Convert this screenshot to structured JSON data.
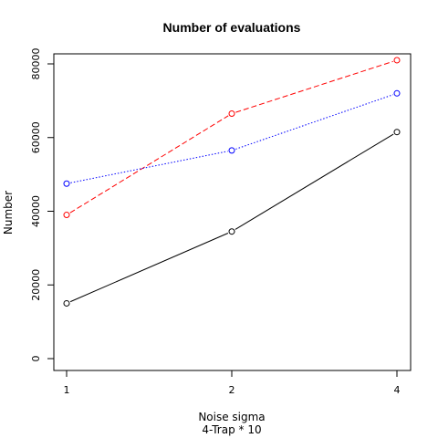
{
  "chart_data": {
    "type": "line",
    "title": "Number of evaluations",
    "xlabel": "Noise sigma",
    "subtitle": "4-Trap * 10",
    "ylabel": "Number",
    "categories": [
      "1",
      "2",
      "4"
    ],
    "ylim": [
      0,
      80000
    ],
    "yticks": [
      "0",
      "20000",
      "40000",
      "60000",
      "80000"
    ],
    "grid": false,
    "series": [
      {
        "values": [
          15000,
          34500,
          61500
        ],
        "color": "#000000",
        "dash": "solid"
      },
      {
        "values": [
          39000,
          66500,
          81000
        ],
        "color": "#ff0000",
        "dash": "dashed"
      },
      {
        "values": [
          47500,
          56500,
          72000
        ],
        "color": "#0000ff",
        "dash": "dotted"
      }
    ]
  }
}
